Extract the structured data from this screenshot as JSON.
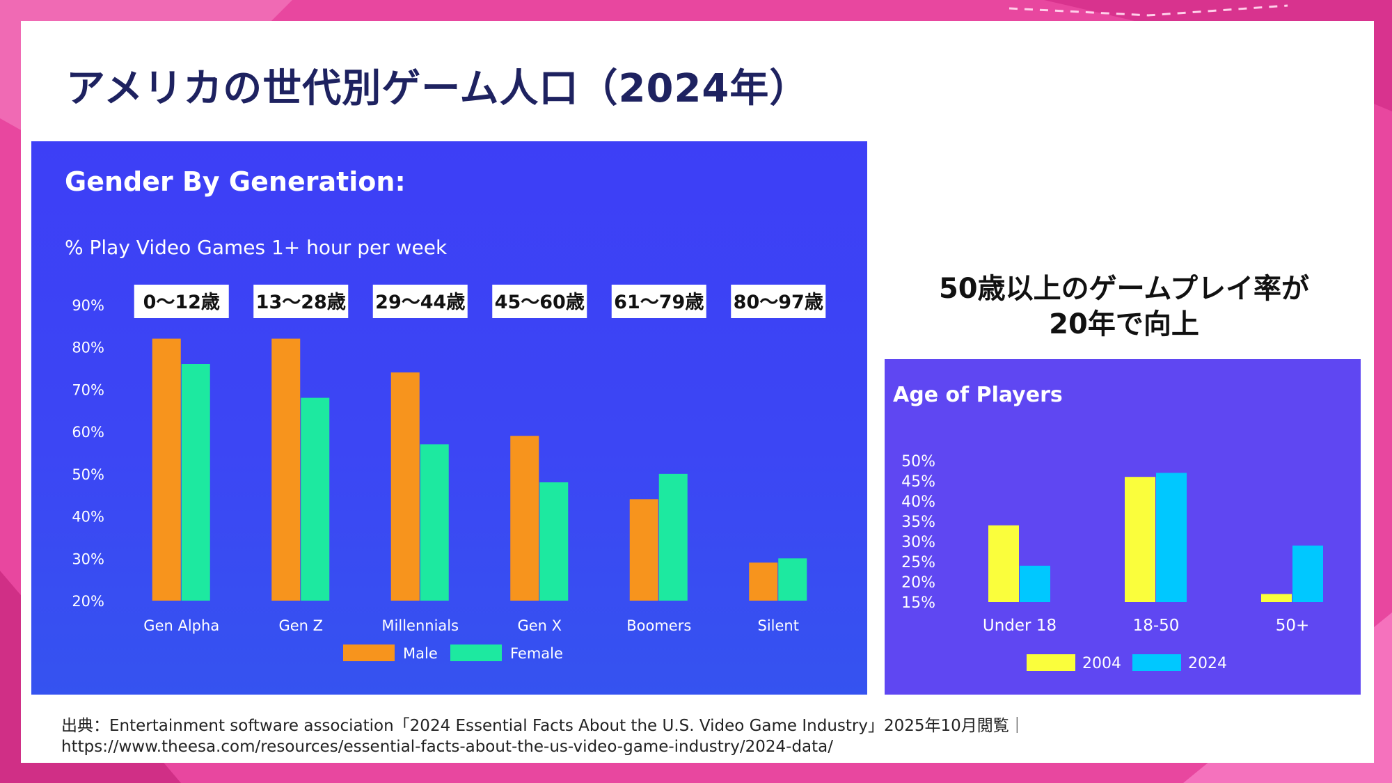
{
  "title": "アメリカの世代別ゲーム人口（2024年）",
  "callout": {
    "line1": "50歳以上のゲームプレイ率が",
    "line2": "20年で向上"
  },
  "source": {
    "line1": "出典：Entertainment software association「2024 Essential Facts About the U.S. Video Game Industry」2025年10月閲覧｜",
    "line2": "https://www.theesa.com/resources/essential-facts-about-the-us-video-game-industry/2024-data/"
  },
  "colors": {
    "male": "#f7941d",
    "female": "#1de9a0",
    "y2004": "#fafe3c",
    "y2024": "#00c8ff"
  },
  "chart_data": [
    {
      "type": "bar",
      "title": "Gender By Generation:",
      "subtitle": "% Play Video Games 1+ hour per week",
      "categories": [
        "Gen Alpha",
        "Gen Z",
        "Millennials",
        "Gen X",
        "Boomers",
        "Silent"
      ],
      "age_labels": [
        "0〜12歳",
        "13〜28歳",
        "29〜44歳",
        "45〜60歳",
        "61〜79歳",
        "80〜97歳"
      ],
      "series": [
        {
          "name": "Male",
          "values": [
            82,
            82,
            74,
            59,
            44,
            29
          ]
        },
        {
          "name": "Female",
          "values": [
            76,
            68,
            57,
            48,
            50,
            30
          ]
        }
      ],
      "yticks": [
        "20%",
        "30%",
        "40%",
        "50%",
        "60%",
        "70%",
        "80%",
        "90%"
      ],
      "ylim": [
        20,
        90
      ],
      "legend": "bottom-center"
    },
    {
      "type": "bar",
      "title": "Age of Players",
      "categories": [
        "Under 18",
        "18-50",
        "50+"
      ],
      "series": [
        {
          "name": "2004",
          "values": [
            34,
            46,
            17
          ]
        },
        {
          "name": "2024",
          "values": [
            24,
            47,
            29
          ]
        }
      ],
      "yticks": [
        "15%",
        "20%",
        "25%",
        "30%",
        "35%",
        "40%",
        "45%",
        "50%"
      ],
      "ylim": [
        15,
        50
      ],
      "legend": "bottom-center"
    }
  ]
}
